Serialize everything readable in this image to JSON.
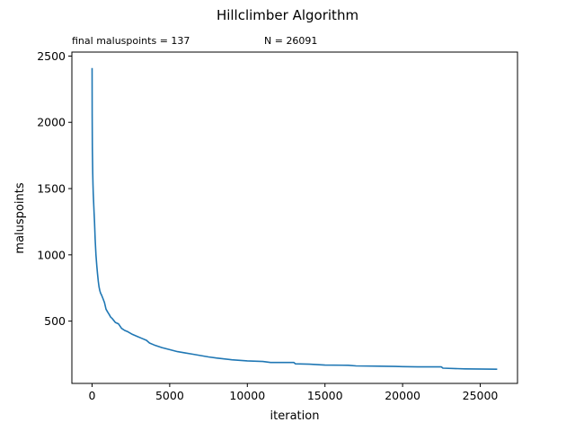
{
  "chart_data": {
    "type": "line",
    "title": "Hillclimber Algorithm",
    "subtitle_left": "final maluspoints = 137",
    "subtitle_right": "N = 26091",
    "xlabel": "iteration",
    "ylabel": "maluspoints",
    "xlim": [
      -1300,
      27400
    ],
    "ylim": [
      30,
      2530
    ],
    "xticks": [
      0,
      5000,
      10000,
      15000,
      20000,
      25000
    ],
    "yticks": [
      500,
      1000,
      1500,
      2000,
      2500
    ],
    "grid": false,
    "legend": "none",
    "series": [
      {
        "color": "#1f77b4",
        "x": [
          0,
          10,
          20,
          40,
          60,
          80,
          100,
          130,
          160,
          200,
          250,
          300,
          350,
          400,
          450,
          500,
          550,
          600,
          700,
          800,
          900,
          1000,
          1100,
          1200,
          1300,
          1500,
          1700,
          1900,
          2100,
          2300,
          2600,
          2900,
          3200,
          3500,
          3700,
          4000,
          4500,
          5000,
          5500,
          6000,
          6500,
          7000,
          7500,
          8000,
          8500,
          9000,
          10000,
          11000,
          11500,
          13000,
          13100,
          14000,
          15000,
          16500,
          17000,
          18500,
          19500,
          20000,
          21000,
          22500,
          22600,
          24000,
          26091
        ],
        "y": [
          2410,
          2050,
          1800,
          1620,
          1530,
          1460,
          1400,
          1320,
          1250,
          1120,
          1000,
          920,
          860,
          800,
          760,
          730,
          710,
          700,
          670,
          640,
          590,
          570,
          550,
          530,
          520,
          490,
          480,
          445,
          430,
          420,
          400,
          385,
          370,
          355,
          335,
          320,
          300,
          285,
          270,
          260,
          250,
          240,
          230,
          222,
          215,
          208,
          200,
          195,
          188,
          188,
          178,
          175,
          168,
          167,
          162,
          160,
          158,
          157,
          155,
          155,
          145,
          140,
          137
        ]
      }
    ]
  }
}
